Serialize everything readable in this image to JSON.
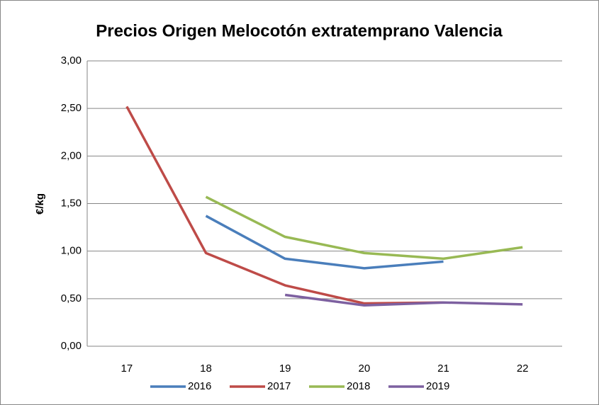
{
  "chart_data": {
    "type": "line",
    "title": "Precios Origen Melocotón extratemprano Valencia",
    "y_label": "€/kg",
    "categories": [
      "17",
      "18",
      "19",
      "20",
      "21",
      "22"
    ],
    "series": [
      {
        "name": "2016",
        "color": "#4a7ebb",
        "values": [
          null,
          1.37,
          0.92,
          0.82,
          0.89,
          null
        ]
      },
      {
        "name": "2017",
        "color": "#be4b48",
        "values": [
          2.52,
          0.98,
          0.64,
          0.45,
          0.46,
          null
        ]
      },
      {
        "name": "2018",
        "color": "#98b954",
        "values": [
          null,
          1.57,
          1.15,
          0.98,
          0.92,
          1.04
        ]
      },
      {
        "name": "2019",
        "color": "#7d60a0",
        "values": [
          null,
          null,
          0.54,
          0.43,
          0.46,
          0.44
        ]
      }
    ],
    "ylim": [
      0,
      3
    ],
    "yticks": [
      {
        "value": 0,
        "label": "0,00"
      },
      {
        "value": 0.5,
        "label": "0,50"
      },
      {
        "value": 1,
        "label": "1,00"
      },
      {
        "value": 1.5,
        "label": "1,50"
      },
      {
        "value": 2,
        "label": "2,00"
      },
      {
        "value": 2.5,
        "label": "2,50"
      },
      {
        "value": 3,
        "label": "3,00"
      }
    ],
    "grid": true,
    "legend": "bottom"
  }
}
